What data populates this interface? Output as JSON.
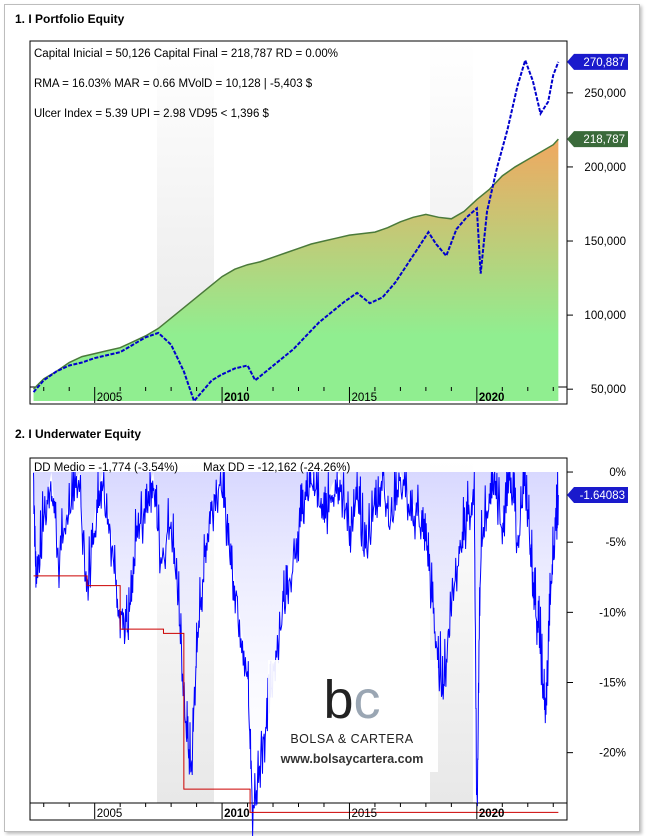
{
  "panels": {
    "equity_title": "1. I Portfolio Equity",
    "underwater_title": "2. I Underwater Equity"
  },
  "equity_stats": {
    "line1": "Capital Inicial = 50,126  Capital Final = 218,787  RD = 0.00%",
    "line2": "RMA = 16.03%  MAR = 0.66  MVolD = 10,128 | -5,403 $",
    "line3": "Ulcer Index = 5.39  UPI = 2.98  VD95 < 1,396 $"
  },
  "underwater_stats": {
    "dd_medio": "DD Medio = -1,774 (-3.54%)",
    "max_dd": "Max DD = -12,162 (-24.26%)"
  },
  "watermark": {
    "logo": "bc",
    "name": "BOLSA & CARTERA",
    "url": "www.bolsaycartera.com"
  },
  "colors": {
    "equity_fill_top": "#f0a860",
    "equity_fill_bottom": "#90ee90",
    "equity_line": "#4a7a3a",
    "benchmark_line": "#0000cc",
    "underwater_line": "#0000ff",
    "max_dd_line": "#cc0000",
    "badge_blue": "#1a1acc",
    "badge_green": "#3a6a3a"
  },
  "chart_data": [
    {
      "type": "area",
      "title": "1. I Portfolio Equity",
      "x_ticks": [
        "2005",
        "2010",
        "2015",
        "2020"
      ],
      "x_tick_bold": [
        "2010",
        "2020"
      ],
      "y_ticks": [
        "50,000",
        "100,000",
        "150,000",
        "200,000",
        "250,000"
      ],
      "ylim": [
        40000,
        285000
      ],
      "xlim": [
        2002.5,
        2023.5
      ],
      "badges": {
        "benchmark_last": "270,887",
        "equity_last": "218,787"
      },
      "series": [
        {
          "kind": "area",
          "points": [
            [
              2002.6,
              50126
            ],
            [
              2003.0,
              57000
            ],
            [
              2003.5,
              62000
            ],
            [
              2004.0,
              68000
            ],
            [
              2004.5,
              72000
            ],
            [
              2005.0,
              74000
            ],
            [
              2005.5,
              76000
            ],
            [
              2006.0,
              78000
            ],
            [
              2006.5,
              82000
            ],
            [
              2007.0,
              86000
            ],
            [
              2007.5,
              91000
            ],
            [
              2008.0,
              98000
            ],
            [
              2008.5,
              105000
            ],
            [
              2009.0,
              112000
            ],
            [
              2009.5,
              119000
            ],
            [
              2010.0,
              126000
            ],
            [
              2010.5,
              131000
            ],
            [
              2011.0,
              134000
            ],
            [
              2011.5,
              136000
            ],
            [
              2012.0,
              139000
            ],
            [
              2012.5,
              142000
            ],
            [
              2013.0,
              145000
            ],
            [
              2013.5,
              148000
            ],
            [
              2014.0,
              150000
            ],
            [
              2014.5,
              152000
            ],
            [
              2015.0,
              154000
            ],
            [
              2015.5,
              155000
            ],
            [
              2016.0,
              156000
            ],
            [
              2016.5,
              159000
            ],
            [
              2017.0,
              163000
            ],
            [
              2017.5,
              166000
            ],
            [
              2018.0,
              168000
            ],
            [
              2018.5,
              166000
            ],
            [
              2019.0,
              165000
            ],
            [
              2019.5,
              170000
            ],
            [
              2020.0,
              178000
            ],
            [
              2020.5,
              185000
            ],
            [
              2021.0,
              194000
            ],
            [
              2021.5,
              200000
            ],
            [
              2022.0,
              205000
            ],
            [
              2022.5,
              210000
            ],
            [
              2023.0,
              215000
            ],
            [
              2023.2,
              218787
            ]
          ]
        },
        {
          "kind": "line",
          "points": [
            [
              2002.6,
              48000
            ],
            [
              2003.0,
              56000
            ],
            [
              2003.5,
              62000
            ],
            [
              2004.0,
              66000
            ],
            [
              2004.5,
              68000
            ],
            [
              2005.0,
              71000
            ],
            [
              2005.5,
              73000
            ],
            [
              2006.0,
              75000
            ],
            [
              2006.5,
              80000
            ],
            [
              2007.0,
              85000
            ],
            [
              2007.5,
              88000
            ],
            [
              2008.0,
              80000
            ],
            [
              2008.5,
              62000
            ],
            [
              2008.9,
              42000
            ],
            [
              2009.2,
              48000
            ],
            [
              2009.6,
              56000
            ],
            [
              2010.0,
              60000
            ],
            [
              2010.5,
              64000
            ],
            [
              2011.0,
              66000
            ],
            [
              2011.3,
              56000
            ],
            [
              2011.8,
              63000
            ],
            [
              2012.3,
              70000
            ],
            [
              2012.8,
              77000
            ],
            [
              2013.3,
              86000
            ],
            [
              2013.8,
              95000
            ],
            [
              2014.3,
              102000
            ],
            [
              2014.8,
              109000
            ],
            [
              2015.3,
              115000
            ],
            [
              2015.8,
              108000
            ],
            [
              2016.3,
              112000
            ],
            [
              2016.8,
              122000
            ],
            [
              2017.3,
              135000
            ],
            [
              2017.8,
              148000
            ],
            [
              2018.1,
              156000
            ],
            [
              2018.4,
              148000
            ],
            [
              2018.8,
              140000
            ],
            [
              2019.2,
              158000
            ],
            [
              2019.6,
              166000
            ],
            [
              2020.0,
              172000
            ],
            [
              2020.15,
              128000
            ],
            [
              2020.4,
              170000
            ],
            [
              2020.8,
              200000
            ],
            [
              2021.2,
              225000
            ],
            [
              2021.6,
              255000
            ],
            [
              2021.9,
              272000
            ],
            [
              2022.2,
              258000
            ],
            [
              2022.5,
              236000
            ],
            [
              2022.8,
              244000
            ],
            [
              2023.0,
              262000
            ],
            [
              2023.2,
              270887
            ]
          ]
        }
      ]
    },
    {
      "type": "line",
      "title": "2. I Underwater Equity",
      "x_ticks": [
        "2005",
        "2010",
        "2015",
        "2020"
      ],
      "x_tick_bold": [
        "2010",
        "2020"
      ],
      "y_ticks": [
        "0%",
        "-5%",
        "-10%",
        "-15%",
        "-20%"
      ],
      "ylim": [
        -24.8,
        1.0
      ],
      "xlim": [
        2002.5,
        2023.5
      ],
      "badges": {
        "last": "-1.64083"
      },
      "series": [
        {
          "kind": "drawdown",
          "points": [
            [
              2002.6,
              0
            ],
            [
              2002.7,
              -7.5
            ],
            [
              2003.0,
              -3
            ],
            [
              2003.3,
              0
            ],
            [
              2003.6,
              -6
            ],
            [
              2004.0,
              -2
            ],
            [
              2004.4,
              0
            ],
            [
              2004.7,
              -8
            ],
            [
              2005.0,
              -3
            ],
            [
              2005.3,
              0
            ],
            [
              2005.7,
              -5
            ],
            [
              2006.0,
              -9.5
            ],
            [
              2006.3,
              -11
            ],
            [
              2006.6,
              -5
            ],
            [
              2007.0,
              -2
            ],
            [
              2007.3,
              0
            ],
            [
              2007.6,
              -6
            ],
            [
              2008.0,
              -3
            ],
            [
              2008.3,
              -9
            ],
            [
              2008.6,
              -18
            ],
            [
              2008.8,
              -21
            ],
            [
              2009.0,
              -12
            ],
            [
              2009.3,
              -6
            ],
            [
              2009.6,
              -2
            ],
            [
              2010.0,
              0
            ],
            [
              2010.3,
              -5
            ],
            [
              2010.6,
              -9
            ],
            [
              2011.0,
              -14
            ],
            [
              2011.2,
              -24
            ],
            [
              2011.5,
              -20
            ],
            [
              2011.8,
              -17
            ],
            [
              2012.0,
              -14
            ],
            [
              2012.3,
              -10
            ],
            [
              2012.6,
              -7
            ],
            [
              2013.0,
              -4
            ],
            [
              2013.3,
              -1
            ],
            [
              2013.6,
              0
            ],
            [
              2014.0,
              -3
            ],
            [
              2014.3,
              -1
            ],
            [
              2014.6,
              0
            ],
            [
              2015.0,
              -4
            ],
            [
              2015.3,
              -1
            ],
            [
              2015.6,
              -5
            ],
            [
              2016.0,
              -2
            ],
            [
              2016.3,
              0
            ],
            [
              2016.6,
              -3
            ],
            [
              2017.0,
              0
            ],
            [
              2017.4,
              -2
            ],
            [
              2017.8,
              -3
            ],
            [
              2018.1,
              -6
            ],
            [
              2018.4,
              -12
            ],
            [
              2018.7,
              -15
            ],
            [
              2019.0,
              -9
            ],
            [
              2019.3,
              -5
            ],
            [
              2019.6,
              -3
            ],
            [
              2019.9,
              -1
            ],
            [
              2020.0,
              -24.2
            ],
            [
              2020.15,
              -5
            ],
            [
              2020.4,
              -2
            ],
            [
              2020.7,
              0
            ],
            [
              2021.0,
              -3
            ],
            [
              2021.3,
              0
            ],
            [
              2021.6,
              -4
            ],
            [
              2021.9,
              0
            ],
            [
              2022.1,
              -5
            ],
            [
              2022.3,
              -9
            ],
            [
              2022.5,
              -12
            ],
            [
              2022.7,
              -17.5
            ],
            [
              2022.9,
              -8
            ],
            [
              2023.1,
              -3
            ],
            [
              2023.2,
              -1.64
            ]
          ]
        },
        {
          "kind": "max_dd_steps",
          "points": [
            [
              2002.6,
              -7.4
            ],
            [
              2004.7,
              -7.4
            ],
            [
              2004.7,
              -8.1
            ],
            [
              2006.0,
              -8.1
            ],
            [
              2006.0,
              -11.2
            ],
            [
              2007.7,
              -11.2
            ],
            [
              2007.7,
              -11.5
            ],
            [
              2008.5,
              -11.5
            ],
            [
              2008.5,
              -22.6
            ],
            [
              2011.1,
              -22.6
            ],
            [
              2011.1,
              -24.26
            ],
            [
              2023.2,
              -24.26
            ]
          ]
        }
      ]
    }
  ]
}
